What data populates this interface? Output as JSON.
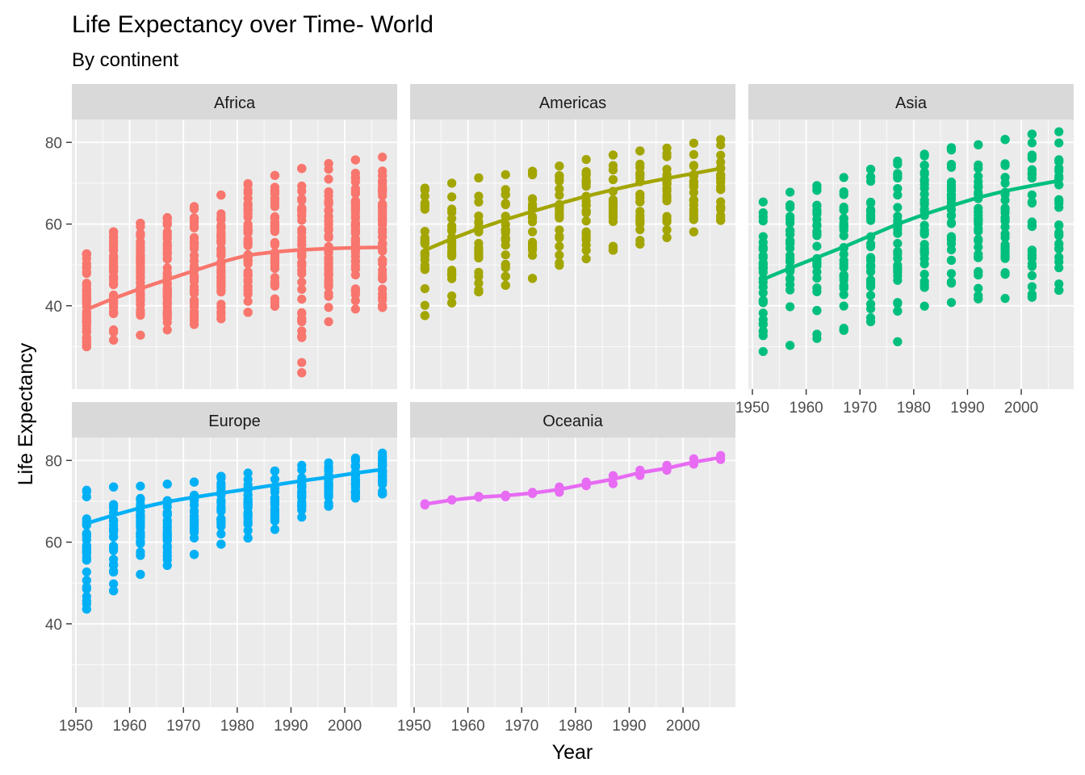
{
  "chart_data": {
    "type": "scatter",
    "title": "Life Expectancy over Time- World",
    "subtitle": "By continent",
    "xlabel": "Year",
    "ylabel": "Life Expectancy",
    "xlim": [
      1949.25,
      2009.75
    ],
    "ylim": [
      19.6,
      85.6
    ],
    "x_ticks": [
      1950,
      1960,
      1970,
      1980,
      1990,
      2000
    ],
    "y_ticks": [
      40,
      60,
      80
    ],
    "grid": true,
    "legend": "none",
    "years": [
      1952,
      1957,
      1962,
      1967,
      1972,
      1977,
      1982,
      1987,
      1992,
      1997,
      2002,
      2007
    ],
    "panels": [
      {
        "name": "Africa",
        "color": "#F8766D",
        "count_per_year": 52,
        "min": [
          30.0,
          31.6,
          32.8,
          34.1,
          35.4,
          36.8,
          38.4,
          39.9,
          23.6,
          36.1,
          39.2,
          39.6
        ],
        "max": [
          52.7,
          58.1,
          60.2,
          61.6,
          64.3,
          67.1,
          69.9,
          71.9,
          73.6,
          74.8,
          75.7,
          76.4
        ],
        "trend": [
          39.1,
          41.8,
          44.2,
          46.4,
          48.6,
          50.7,
          52.4,
          53.2,
          53.7,
          54.0,
          54.2,
          54.3
        ]
      },
      {
        "name": "Americas",
        "color": "#A3A500",
        "count_per_year": 25,
        "min": [
          37.6,
          40.7,
          43.4,
          45.0,
          46.7,
          49.9,
          51.5,
          53.6,
          55.1,
          56.7,
          58.1,
          60.9
        ],
        "max": [
          68.8,
          70.0,
          71.3,
          72.1,
          72.9,
          74.2,
          75.8,
          76.9,
          77.9,
          78.6,
          79.8,
          80.7
        ],
        "trend": [
          53.6,
          56.4,
          58.9,
          61.1,
          63.1,
          65.0,
          66.8,
          68.4,
          69.9,
          71.2,
          72.4,
          73.6
        ]
      },
      {
        "name": "Asia",
        "color": "#00BF7D",
        "count_per_year": 33,
        "min": [
          28.8,
          30.3,
          32.0,
          34.0,
          36.1,
          31.2,
          39.9,
          40.8,
          41.7,
          41.8,
          42.1,
          43.8
        ],
        "max": [
          65.4,
          67.8,
          69.4,
          71.4,
          73.4,
          75.4,
          77.1,
          78.7,
          79.4,
          80.7,
          82.0,
          82.6
        ],
        "trend": [
          46.5,
          49.2,
          51.8,
          54.4,
          57.2,
          60.0,
          62.4,
          64.5,
          66.5,
          68.1,
          69.4,
          70.6
        ]
      },
      {
        "name": "Europe",
        "color": "#00B0F6",
        "count_per_year": 30,
        "min": [
          43.6,
          48.1,
          52.1,
          54.3,
          57.0,
          59.5,
          61.0,
          63.1,
          66.1,
          68.8,
          70.8,
          71.8
        ],
        "max": [
          72.7,
          73.5,
          73.7,
          74.2,
          74.7,
          76.1,
          76.9,
          77.4,
          78.8,
          79.4,
          80.6,
          81.8
        ],
        "trend": [
          64.6,
          66.6,
          68.4,
          69.9,
          71.0,
          72.0,
          73.0,
          74.0,
          75.0,
          75.9,
          76.9,
          77.8
        ]
      },
      {
        "name": "Oceania",
        "color": "#E76BF3",
        "count_per_year": 2,
        "min": [
          69.1,
          70.3,
          71.0,
          71.1,
          71.9,
          72.2,
          73.8,
          74.3,
          76.3,
          77.6,
          79.1,
          80.2
        ],
        "max": [
          69.4,
          70.4,
          71.2,
          71.5,
          72.2,
          73.5,
          74.7,
          76.3,
          77.6,
          78.8,
          80.4,
          81.2
        ],
        "trend": [
          69.3,
          70.3,
          71.0,
          71.4,
          72.0,
          72.9,
          74.2,
          75.4,
          77.0,
          78.1,
          79.6,
          80.7
        ]
      }
    ]
  }
}
